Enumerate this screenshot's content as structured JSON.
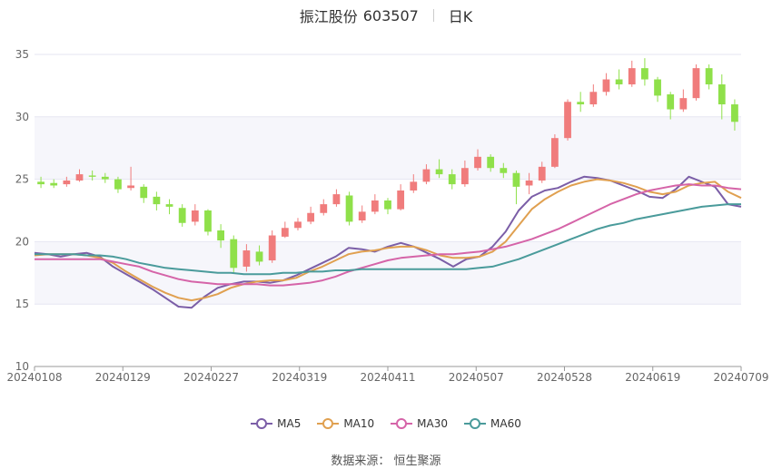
{
  "header": {
    "name": "振江股份",
    "code": "603507",
    "period": "日K"
  },
  "source_text": "数据来源：  恒生聚源",
  "colors": {
    "up": "#f07c7c",
    "down": "#8fe04a",
    "grid": "#e6e6f2",
    "band": "#f6f6fb",
    "ma5": "#7b5ea7",
    "ma10": "#e0a050",
    "ma30": "#d564a8",
    "ma60": "#4a9b9b"
  },
  "chart_data": {
    "type": "candlestick",
    "x_ticks": [
      "20240108",
      "20240129",
      "20240227",
      "20240319",
      "20240411",
      "20240507",
      "20240528",
      "20240619",
      "20240709"
    ],
    "ylim": [
      10,
      35
    ],
    "y_ticks": [
      10,
      15,
      20,
      25,
      30,
      35
    ],
    "legend": [
      "MA5",
      "MA10",
      "MA30",
      "MA60"
    ],
    "ma_series": [
      {
        "name": "MA5",
        "values": [
          19.1,
          19.0,
          18.8,
          19.0,
          19.1,
          18.8,
          18.0,
          17.4,
          16.8,
          16.2,
          15.5,
          14.8,
          14.7,
          15.6,
          16.3,
          16.6,
          16.8,
          16.8,
          16.7,
          16.9,
          17.3,
          17.8,
          18.3,
          18.8,
          19.5,
          19.4,
          19.2,
          19.6,
          19.9,
          19.6,
          19.1,
          18.6,
          18.0,
          18.6,
          18.8,
          19.6,
          20.8,
          22.5,
          23.6,
          24.1,
          24.3,
          24.8,
          25.2,
          25.1,
          24.9,
          24.5,
          24.1,
          23.6,
          23.5,
          24.2,
          25.2,
          24.8,
          24.4,
          23.0,
          22.8
        ]
      },
      {
        "name": "MA10",
        "values": [
          18.9,
          19.0,
          19.0,
          19.0,
          18.9,
          18.7,
          18.3,
          17.6,
          17.0,
          16.4,
          15.9,
          15.5,
          15.3,
          15.5,
          15.8,
          16.3,
          16.6,
          16.8,
          16.9,
          16.9,
          17.1,
          17.6,
          18.0,
          18.5,
          19.0,
          19.2,
          19.3,
          19.5,
          19.6,
          19.6,
          19.3,
          18.9,
          18.7,
          18.7,
          18.8,
          19.2,
          20.0,
          21.3,
          22.6,
          23.4,
          24.0,
          24.5,
          24.8,
          25.0,
          24.9,
          24.7,
          24.4,
          24.0,
          23.8,
          24.0,
          24.5,
          24.7,
          24.8,
          24.0,
          23.5
        ]
      },
      {
        "name": "MA30",
        "values": [
          18.6,
          18.6,
          18.6,
          18.6,
          18.6,
          18.6,
          18.4,
          18.2,
          18.0,
          17.6,
          17.3,
          17.0,
          16.8,
          16.7,
          16.6,
          16.6,
          16.6,
          16.6,
          16.5,
          16.5,
          16.6,
          16.7,
          16.9,
          17.2,
          17.6,
          17.9,
          18.2,
          18.5,
          18.7,
          18.8,
          18.9,
          19.0,
          19.0,
          19.1,
          19.2,
          19.4,
          19.6,
          19.9,
          20.2,
          20.6,
          21.0,
          21.5,
          22.0,
          22.5,
          23.0,
          23.4,
          23.8,
          24.1,
          24.3,
          24.5,
          24.6,
          24.5,
          24.5,
          24.3,
          24.2
        ]
      },
      {
        "name": "MA60",
        "values": [
          19.0,
          19.0,
          19.0,
          19.0,
          18.9,
          18.9,
          18.8,
          18.6,
          18.3,
          18.1,
          17.9,
          17.8,
          17.7,
          17.6,
          17.5,
          17.5,
          17.4,
          17.4,
          17.4,
          17.5,
          17.5,
          17.6,
          17.6,
          17.7,
          17.7,
          17.8,
          17.8,
          17.8,
          17.8,
          17.8,
          17.8,
          17.8,
          17.8,
          17.8,
          17.9,
          18.0,
          18.3,
          18.6,
          19.0,
          19.4,
          19.8,
          20.2,
          20.6,
          21.0,
          21.3,
          21.5,
          21.8,
          22.0,
          22.2,
          22.4,
          22.6,
          22.8,
          22.9,
          23.0,
          23.0
        ]
      }
    ],
    "candles": [
      [
        24.8,
        24.6,
        25.2,
        24.3
      ],
      [
        24.7,
        24.5,
        25.0,
        24.3
      ],
      [
        24.6,
        24.9,
        25.2,
        24.4
      ],
      [
        24.9,
        25.4,
        25.8,
        24.8
      ],
      [
        25.3,
        25.2,
        25.7,
        24.9
      ],
      [
        25.2,
        25.0,
        25.5,
        24.7
      ],
      [
        25.0,
        24.2,
        25.2,
        23.9
      ],
      [
        24.3,
        24.5,
        26.0,
        24.1
      ],
      [
        24.4,
        23.5,
        24.6,
        23.1
      ],
      [
        23.6,
        23.0,
        24.0,
        22.5
      ],
      [
        23.0,
        22.8,
        23.4,
        22.2
      ],
      [
        22.7,
        21.5,
        23.0,
        21.2
      ],
      [
        21.6,
        22.5,
        23.0,
        21.3
      ],
      [
        22.5,
        20.8,
        22.6,
        20.5
      ],
      [
        20.9,
        20.1,
        21.4,
        19.5
      ],
      [
        20.2,
        17.9,
        20.5,
        17.5
      ],
      [
        18.0,
        19.3,
        19.8,
        17.6
      ],
      [
        19.2,
        18.4,
        19.7,
        18.1
      ],
      [
        18.5,
        20.5,
        20.9,
        18.3
      ],
      [
        20.4,
        21.1,
        21.6,
        20.3
      ],
      [
        21.1,
        21.6,
        21.9,
        20.9
      ],
      [
        21.6,
        22.3,
        22.8,
        21.4
      ],
      [
        22.3,
        23.0,
        23.4,
        22.1
      ],
      [
        23.0,
        23.8,
        24.2,
        22.8
      ],
      [
        23.7,
        21.6,
        24.0,
        21.3
      ],
      [
        21.7,
        22.4,
        22.9,
        21.5
      ],
      [
        22.4,
        23.3,
        23.8,
        22.2
      ],
      [
        23.3,
        22.6,
        23.5,
        22.2
      ],
      [
        22.6,
        24.1,
        24.6,
        22.5
      ],
      [
        24.1,
        24.8,
        25.4,
        23.9
      ],
      [
        24.8,
        25.8,
        26.2,
        24.6
      ],
      [
        25.8,
        25.4,
        26.6,
        25.1
      ],
      [
        25.4,
        24.6,
        25.8,
        24.2
      ],
      [
        24.6,
        25.9,
        26.5,
        24.4
      ],
      [
        25.9,
        26.8,
        27.4,
        25.7
      ],
      [
        26.8,
        25.9,
        27.0,
        25.6
      ],
      [
        25.9,
        25.5,
        26.3,
        25.1
      ],
      [
        25.5,
        24.4,
        25.7,
        23.0
      ],
      [
        24.5,
        24.9,
        25.5,
        23.8
      ],
      [
        24.9,
        26.0,
        26.4,
        24.7
      ],
      [
        26.0,
        28.3,
        28.6,
        25.9
      ],
      [
        28.3,
        31.2,
        31.4,
        28.1
      ],
      [
        31.2,
        31.0,
        32.0,
        30.4
      ],
      [
        31.0,
        32.0,
        32.6,
        30.8
      ],
      [
        32.0,
        33.0,
        33.5,
        31.7
      ],
      [
        33.0,
        32.6,
        33.8,
        32.2
      ],
      [
        32.6,
        33.9,
        34.5,
        32.4
      ],
      [
        33.9,
        33.0,
        34.7,
        32.5
      ],
      [
        33.0,
        31.7,
        33.2,
        31.2
      ],
      [
        31.8,
        30.6,
        32.0,
        29.8
      ],
      [
        30.6,
        31.5,
        32.2,
        30.4
      ],
      [
        31.5,
        33.9,
        34.2,
        31.3
      ],
      [
        33.9,
        32.6,
        34.2,
        32.2
      ],
      [
        32.6,
        31.0,
        33.4,
        29.8
      ],
      [
        31.0,
        29.6,
        31.4,
        28.9
      ]
    ]
  }
}
